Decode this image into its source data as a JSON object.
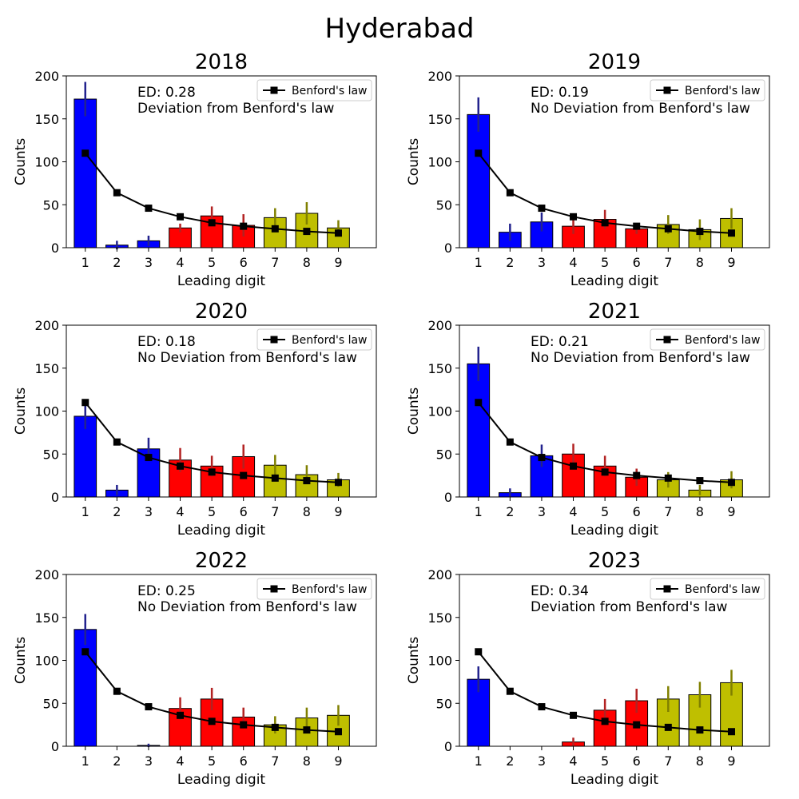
{
  "suptitle": "Hyderabad",
  "chart_data": [
    {
      "type": "bar",
      "title": "2018",
      "xlabel": "Leading digit",
      "ylabel": "Counts",
      "categories": [
        "1",
        "2",
        "3",
        "4",
        "5",
        "6",
        "7",
        "8",
        "9"
      ],
      "ylim": [
        0,
        200
      ],
      "yticks": [
        0,
        50,
        100,
        150,
        200
      ],
      "values": [
        173,
        3,
        8,
        23,
        37,
        26,
        35,
        40,
        23
      ],
      "errors": [
        20,
        5,
        6,
        5,
        11,
        13,
        11,
        13,
        9
      ],
      "bar_colors": [
        "#0000ff",
        "#0000ff",
        "#0000ff",
        "#ff0000",
        "#ff0000",
        "#ff0000",
        "#bfbf00",
        "#bfbf00",
        "#bfbf00"
      ],
      "error_colors": [
        "#23238e",
        "#23238e",
        "#23238e",
        "#b22222",
        "#b22222",
        "#b22222",
        "#808000",
        "#808000",
        "#808000"
      ],
      "benford": {
        "name": "Benford's law",
        "values": [
          110,
          64,
          46,
          36,
          29,
          25,
          22,
          19,
          17
        ]
      },
      "annotation": {
        "ed": "ED: 0.28",
        "text": "Deviation from Benford's law"
      },
      "legend_placement": "top-right",
      "grid": false
    },
    {
      "type": "bar",
      "title": "2019",
      "xlabel": "Leading digit",
      "ylabel": "Counts",
      "categories": [
        "1",
        "2",
        "3",
        "4",
        "5",
        "6",
        "7",
        "8",
        "9"
      ],
      "ylim": [
        0,
        200
      ],
      "yticks": [
        0,
        50,
        100,
        150,
        200
      ],
      "values": [
        155,
        18,
        30,
        25,
        33,
        22,
        27,
        21,
        34
      ],
      "errors": [
        20,
        10,
        11,
        9,
        11,
        6,
        11,
        12,
        12
      ],
      "bar_colors": [
        "#0000ff",
        "#0000ff",
        "#0000ff",
        "#ff0000",
        "#ff0000",
        "#ff0000",
        "#bfbf00",
        "#bfbf00",
        "#bfbf00"
      ],
      "error_colors": [
        "#23238e",
        "#23238e",
        "#23238e",
        "#b22222",
        "#b22222",
        "#b22222",
        "#808000",
        "#808000",
        "#808000"
      ],
      "benford": {
        "name": "Benford's law",
        "values": [
          110,
          64,
          46,
          36,
          29,
          25,
          22,
          19,
          17
        ]
      },
      "annotation": {
        "ed": "ED: 0.19",
        "text": "No Deviation from Benford's law"
      },
      "legend_placement": "top-right",
      "grid": false
    },
    {
      "type": "bar",
      "title": "2020",
      "xlabel": "Leading digit",
      "ylabel": "Counts",
      "categories": [
        "1",
        "2",
        "3",
        "4",
        "5",
        "6",
        "7",
        "8",
        "9"
      ],
      "ylim": [
        0,
        200
      ],
      "yticks": [
        0,
        50,
        100,
        150,
        200
      ],
      "values": [
        94,
        8,
        56,
        43,
        36,
        47,
        37,
        26,
        20
      ],
      "errors": [
        15,
        6,
        13,
        14,
        12,
        14,
        12,
        11,
        8
      ],
      "bar_colors": [
        "#0000ff",
        "#0000ff",
        "#0000ff",
        "#ff0000",
        "#ff0000",
        "#ff0000",
        "#bfbf00",
        "#bfbf00",
        "#bfbf00"
      ],
      "error_colors": [
        "#23238e",
        "#23238e",
        "#23238e",
        "#b22222",
        "#b22222",
        "#b22222",
        "#808000",
        "#808000",
        "#808000"
      ],
      "benford": {
        "name": "Benford's law",
        "values": [
          110,
          64,
          46,
          36,
          29,
          25,
          22,
          19,
          17
        ]
      },
      "annotation": {
        "ed": "ED: 0.18",
        "text": "No Deviation from Benford's law"
      },
      "legend_placement": "top-right",
      "grid": false
    },
    {
      "type": "bar",
      "title": "2021",
      "xlabel": "Leading digit",
      "ylabel": "Counts",
      "categories": [
        "1",
        "2",
        "3",
        "4",
        "5",
        "6",
        "7",
        "8",
        "9"
      ],
      "ylim": [
        0,
        200
      ],
      "yticks": [
        0,
        50,
        100,
        150,
        200
      ],
      "values": [
        155,
        5,
        48,
        50,
        36,
        23,
        20,
        8,
        20
      ],
      "errors": [
        20,
        5,
        13,
        12,
        12,
        10,
        9,
        6,
        10
      ],
      "bar_colors": [
        "#0000ff",
        "#0000ff",
        "#0000ff",
        "#ff0000",
        "#ff0000",
        "#ff0000",
        "#bfbf00",
        "#bfbf00",
        "#bfbf00"
      ],
      "error_colors": [
        "#23238e",
        "#23238e",
        "#23238e",
        "#b22222",
        "#b22222",
        "#b22222",
        "#808000",
        "#808000",
        "#808000"
      ],
      "benford": {
        "name": "Benford's law",
        "values": [
          110,
          64,
          46,
          36,
          29,
          25,
          22,
          19,
          17
        ]
      },
      "annotation": {
        "ed": "ED: 0.21",
        "text": "No Deviation from Benford's law"
      },
      "legend_placement": "top-right",
      "grid": false
    },
    {
      "type": "bar",
      "title": "2022",
      "xlabel": "Leading digit",
      "ylabel": "Counts",
      "categories": [
        "1",
        "2",
        "3",
        "4",
        "5",
        "6",
        "7",
        "8",
        "9"
      ],
      "ylim": [
        0,
        200
      ],
      "yticks": [
        0,
        50,
        100,
        150,
        200
      ],
      "values": [
        136,
        0,
        1,
        44,
        55,
        34,
        25,
        33,
        36
      ],
      "errors": [
        18,
        0,
        2,
        13,
        13,
        11,
        10,
        12,
        12
      ],
      "bar_colors": [
        "#0000ff",
        "#0000ff",
        "#0000ff",
        "#ff0000",
        "#ff0000",
        "#ff0000",
        "#bfbf00",
        "#bfbf00",
        "#bfbf00"
      ],
      "error_colors": [
        "#23238e",
        "#23238e",
        "#23238e",
        "#b22222",
        "#b22222",
        "#b22222",
        "#808000",
        "#808000",
        "#808000"
      ],
      "benford": {
        "name": "Benford's law",
        "values": [
          110,
          64,
          46,
          36,
          29,
          25,
          22,
          19,
          17
        ]
      },
      "annotation": {
        "ed": "ED: 0.25",
        "text": "No Deviation from Benford's law"
      },
      "legend_placement": "top-right",
      "grid": false
    },
    {
      "type": "bar",
      "title": "2023",
      "xlabel": "Leading digit",
      "ylabel": "Counts",
      "categories": [
        "1",
        "2",
        "3",
        "4",
        "5",
        "6",
        "7",
        "8",
        "9"
      ],
      "ylim": [
        0,
        200
      ],
      "yticks": [
        0,
        50,
        100,
        150,
        200
      ],
      "values": [
        78,
        0,
        0,
        5,
        42,
        53,
        55,
        60,
        74
      ],
      "errors": [
        15,
        0,
        0,
        5,
        13,
        14,
        15,
        15,
        15
      ],
      "bar_colors": [
        "#0000ff",
        "#0000ff",
        "#0000ff",
        "#ff0000",
        "#ff0000",
        "#ff0000",
        "#bfbf00",
        "#bfbf00",
        "#bfbf00"
      ],
      "error_colors": [
        "#23238e",
        "#23238e",
        "#23238e",
        "#b22222",
        "#b22222",
        "#b22222",
        "#808000",
        "#808000",
        "#808000"
      ],
      "benford": {
        "name": "Benford's law",
        "values": [
          110,
          64,
          46,
          36,
          29,
          25,
          22,
          19,
          17
        ]
      },
      "annotation": {
        "ed": "ED: 0.34",
        "text": "Deviation from Benford's law"
      },
      "legend_placement": "top-right",
      "grid": false
    }
  ]
}
